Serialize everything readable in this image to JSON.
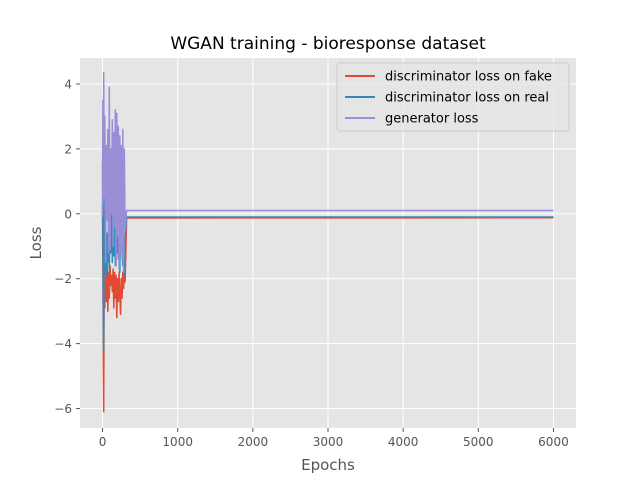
{
  "chart_data": {
    "type": "line",
    "title": "WGAN training - bioresponse dataset",
    "xlabel": "Epochs",
    "ylabel": "Loss",
    "xlim": [
      -300,
      6300
    ],
    "ylim": [
      -6.6,
      4.8
    ],
    "xticks": [
      0,
      1000,
      2000,
      3000,
      4000,
      5000,
      6000
    ],
    "yticks": [
      -6,
      -4,
      -2,
      0,
      2,
      4
    ],
    "grid": true,
    "legend_position": "top-right",
    "colors": {
      "background": "#e5e5e5",
      "grid": "#ffffff",
      "text": "#555555",
      "title": "#000000"
    },
    "series": [
      {
        "name": "discriminator loss on fake",
        "color": "#e24a33",
        "x": [
          0,
          5,
          10,
          15,
          20,
          25,
          30,
          40,
          50,
          60,
          70,
          80,
          90,
          100,
          110,
          120,
          130,
          140,
          150,
          160,
          170,
          180,
          190,
          200,
          210,
          220,
          230,
          240,
          250,
          260,
          270,
          280,
          290,
          300,
          320,
          6000
        ],
        "values": [
          0.3,
          -2.0,
          -4.4,
          -6.1,
          -3.2,
          -1.0,
          -2.9,
          -1.5,
          -2.7,
          -1.4,
          -3.0,
          -1.8,
          -2.6,
          -1.6,
          -2.2,
          -1.9,
          -2.4,
          -1.7,
          -2.9,
          -1.8,
          -2.6,
          -1.9,
          -3.2,
          -2.0,
          -2.7,
          -1.8,
          -2.5,
          -3.1,
          -2.0,
          -2.6,
          -1.8,
          -2.3,
          -1.9,
          -2.1,
          -0.13,
          -0.12
        ]
      },
      {
        "name": "discriminator loss on real",
        "color": "#348abd",
        "x": [
          0,
          5,
          10,
          15,
          20,
          25,
          30,
          40,
          50,
          60,
          70,
          80,
          90,
          100,
          110,
          120,
          130,
          140,
          150,
          160,
          170,
          180,
          190,
          200,
          210,
          220,
          230,
          240,
          250,
          260,
          270,
          280,
          290,
          300,
          320,
          6000
        ],
        "values": [
          1.6,
          -0.2,
          -3.4,
          -4.3,
          -1.8,
          0.5,
          -1.6,
          -0.4,
          -1.9,
          -0.6,
          -1.5,
          -0.2,
          -1.8,
          0.4,
          -1.2,
          0.8,
          -1.5,
          0.2,
          -1.3,
          0.5,
          -1.6,
          -0.1,
          -1.2,
          0.6,
          -1.4,
          0.2,
          -1.8,
          0.4,
          -1.1,
          0.1,
          -1.6,
          -0.3,
          -1.9,
          -0.8,
          -0.1,
          -0.1
        ]
      },
      {
        "name": "generator loss",
        "color": "#988ed5",
        "x": [
          0,
          5,
          10,
          15,
          20,
          25,
          30,
          40,
          50,
          60,
          70,
          80,
          90,
          100,
          110,
          120,
          130,
          140,
          150,
          160,
          170,
          180,
          190,
          200,
          210,
          220,
          230,
          240,
          250,
          260,
          270,
          280,
          290,
          300,
          320,
          6000
        ],
        "values": [
          -0.1,
          3.5,
          1.0,
          4.35,
          2.0,
          0.5,
          3.0,
          -1.5,
          2.1,
          -0.2,
          2.6,
          -1.2,
          3.9,
          -1.1,
          2.0,
          0.0,
          2.9,
          -1.0,
          2.5,
          -0.4,
          3.2,
          -1.6,
          3.1,
          -0.7,
          2.7,
          -1.7,
          2.4,
          -1.2,
          2.1,
          -1.4,
          2.6,
          -1.8,
          2.0,
          -0.5,
          0.1,
          0.1
        ]
      }
    ]
  }
}
